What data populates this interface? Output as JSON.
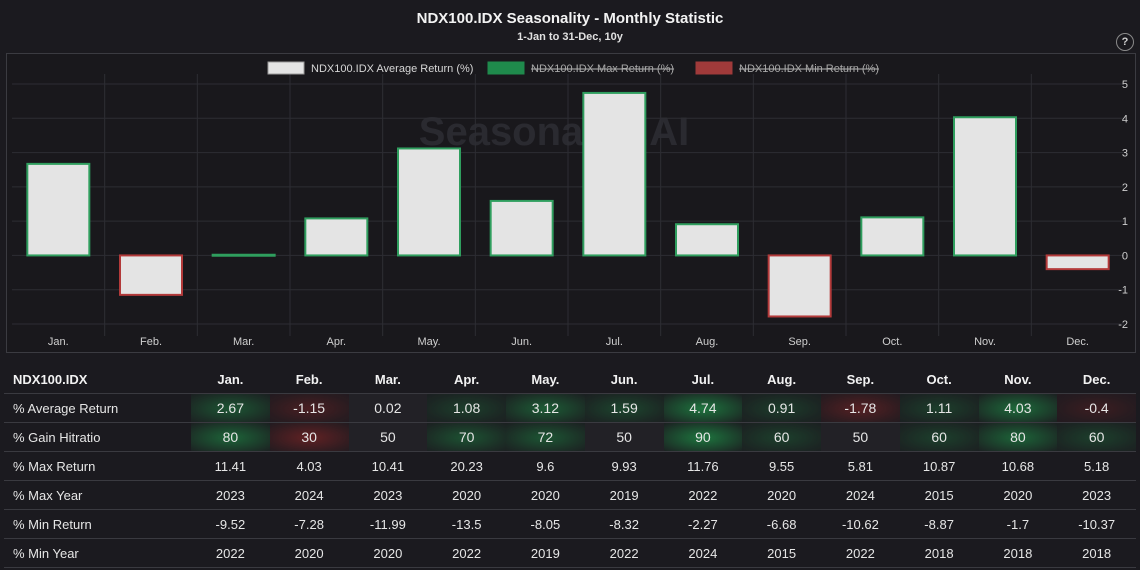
{
  "header": {
    "title": "NDX100.IDX Seasonality - Monthly Statistic",
    "subtitle": "1-Jan to 31-Dec, 10y",
    "help_label": "?"
  },
  "chart_data": {
    "type": "bar",
    "categories": [
      "Jan.",
      "Feb.",
      "Mar.",
      "Apr.",
      "May.",
      "Jun.",
      "Jul.",
      "Aug.",
      "Sep.",
      "Oct.",
      "Nov.",
      "Dec."
    ],
    "series": [
      {
        "name": "NDX100.IDX Average Return (%)",
        "values": [
          2.67,
          -1.15,
          0.02,
          1.08,
          3.12,
          1.59,
          4.74,
          0.91,
          -1.78,
          1.11,
          4.03,
          -0.4
        ],
        "color": "#e4e4e4"
      }
    ],
    "legend": [
      {
        "label": "NDX100.IDX Average Return (%)",
        "color": "#e4e4e4",
        "hidden": false
      },
      {
        "label": "NDX100.IDX Max Return (%)",
        "color": "#1f8a4c",
        "hidden": true
      },
      {
        "label": "NDX100.IDX Min Return (%)",
        "color": "#a03a3a",
        "hidden": true
      }
    ],
    "legend_position": "top",
    "ylim": [
      -2,
      5
    ],
    "yticks": [
      5,
      4,
      3,
      2,
      1,
      0,
      -1,
      -2
    ],
    "grid": true,
    "watermark": "Seasonality.AI",
    "positive_border": "#2f9e5e",
    "negative_border": "#b33a3a"
  },
  "table": {
    "corner": "NDX100.IDX",
    "columns": [
      "Jan.",
      "Feb.",
      "Mar.",
      "Apr.",
      "May.",
      "Jun.",
      "Jul.",
      "Aug.",
      "Sep.",
      "Oct.",
      "Nov.",
      "Dec."
    ],
    "rows": [
      {
        "label": "% Average Return",
        "heat": "avg",
        "values": [
          "2.67",
          "-1.15",
          "0.02",
          "1.08",
          "3.12",
          "1.59",
          "4.74",
          "0.91",
          "-1.78",
          "1.11",
          "4.03",
          "-0.4"
        ]
      },
      {
        "label": "% Gain Hitratio",
        "heat": "hit",
        "values": [
          "80",
          "30",
          "50",
          "70",
          "72",
          "50",
          "90",
          "60",
          "50",
          "60",
          "80",
          "60"
        ]
      },
      {
        "label": "% Max Return",
        "heat": "",
        "values": [
          "11.41",
          "4.03",
          "10.41",
          "20.23",
          "9.6",
          "9.93",
          "11.76",
          "9.55",
          "5.81",
          "10.87",
          "10.68",
          "5.18"
        ]
      },
      {
        "label": "% Max Year",
        "heat": "",
        "values": [
          "2023",
          "2024",
          "2023",
          "2020",
          "2020",
          "2019",
          "2022",
          "2020",
          "2024",
          "2015",
          "2020",
          "2023"
        ]
      },
      {
        "label": "% Min Return",
        "heat": "",
        "values": [
          "-9.52",
          "-7.28",
          "-11.99",
          "-13.5",
          "-8.05",
          "-8.32",
          "-2.27",
          "-6.68",
          "-10.62",
          "-8.87",
          "-1.7",
          "-10.37"
        ]
      },
      {
        "label": "% Min Year",
        "heat": "",
        "values": [
          "2022",
          "2020",
          "2020",
          "2022",
          "2019",
          "2022",
          "2024",
          "2015",
          "2022",
          "2018",
          "2018",
          "2018"
        ]
      }
    ]
  }
}
